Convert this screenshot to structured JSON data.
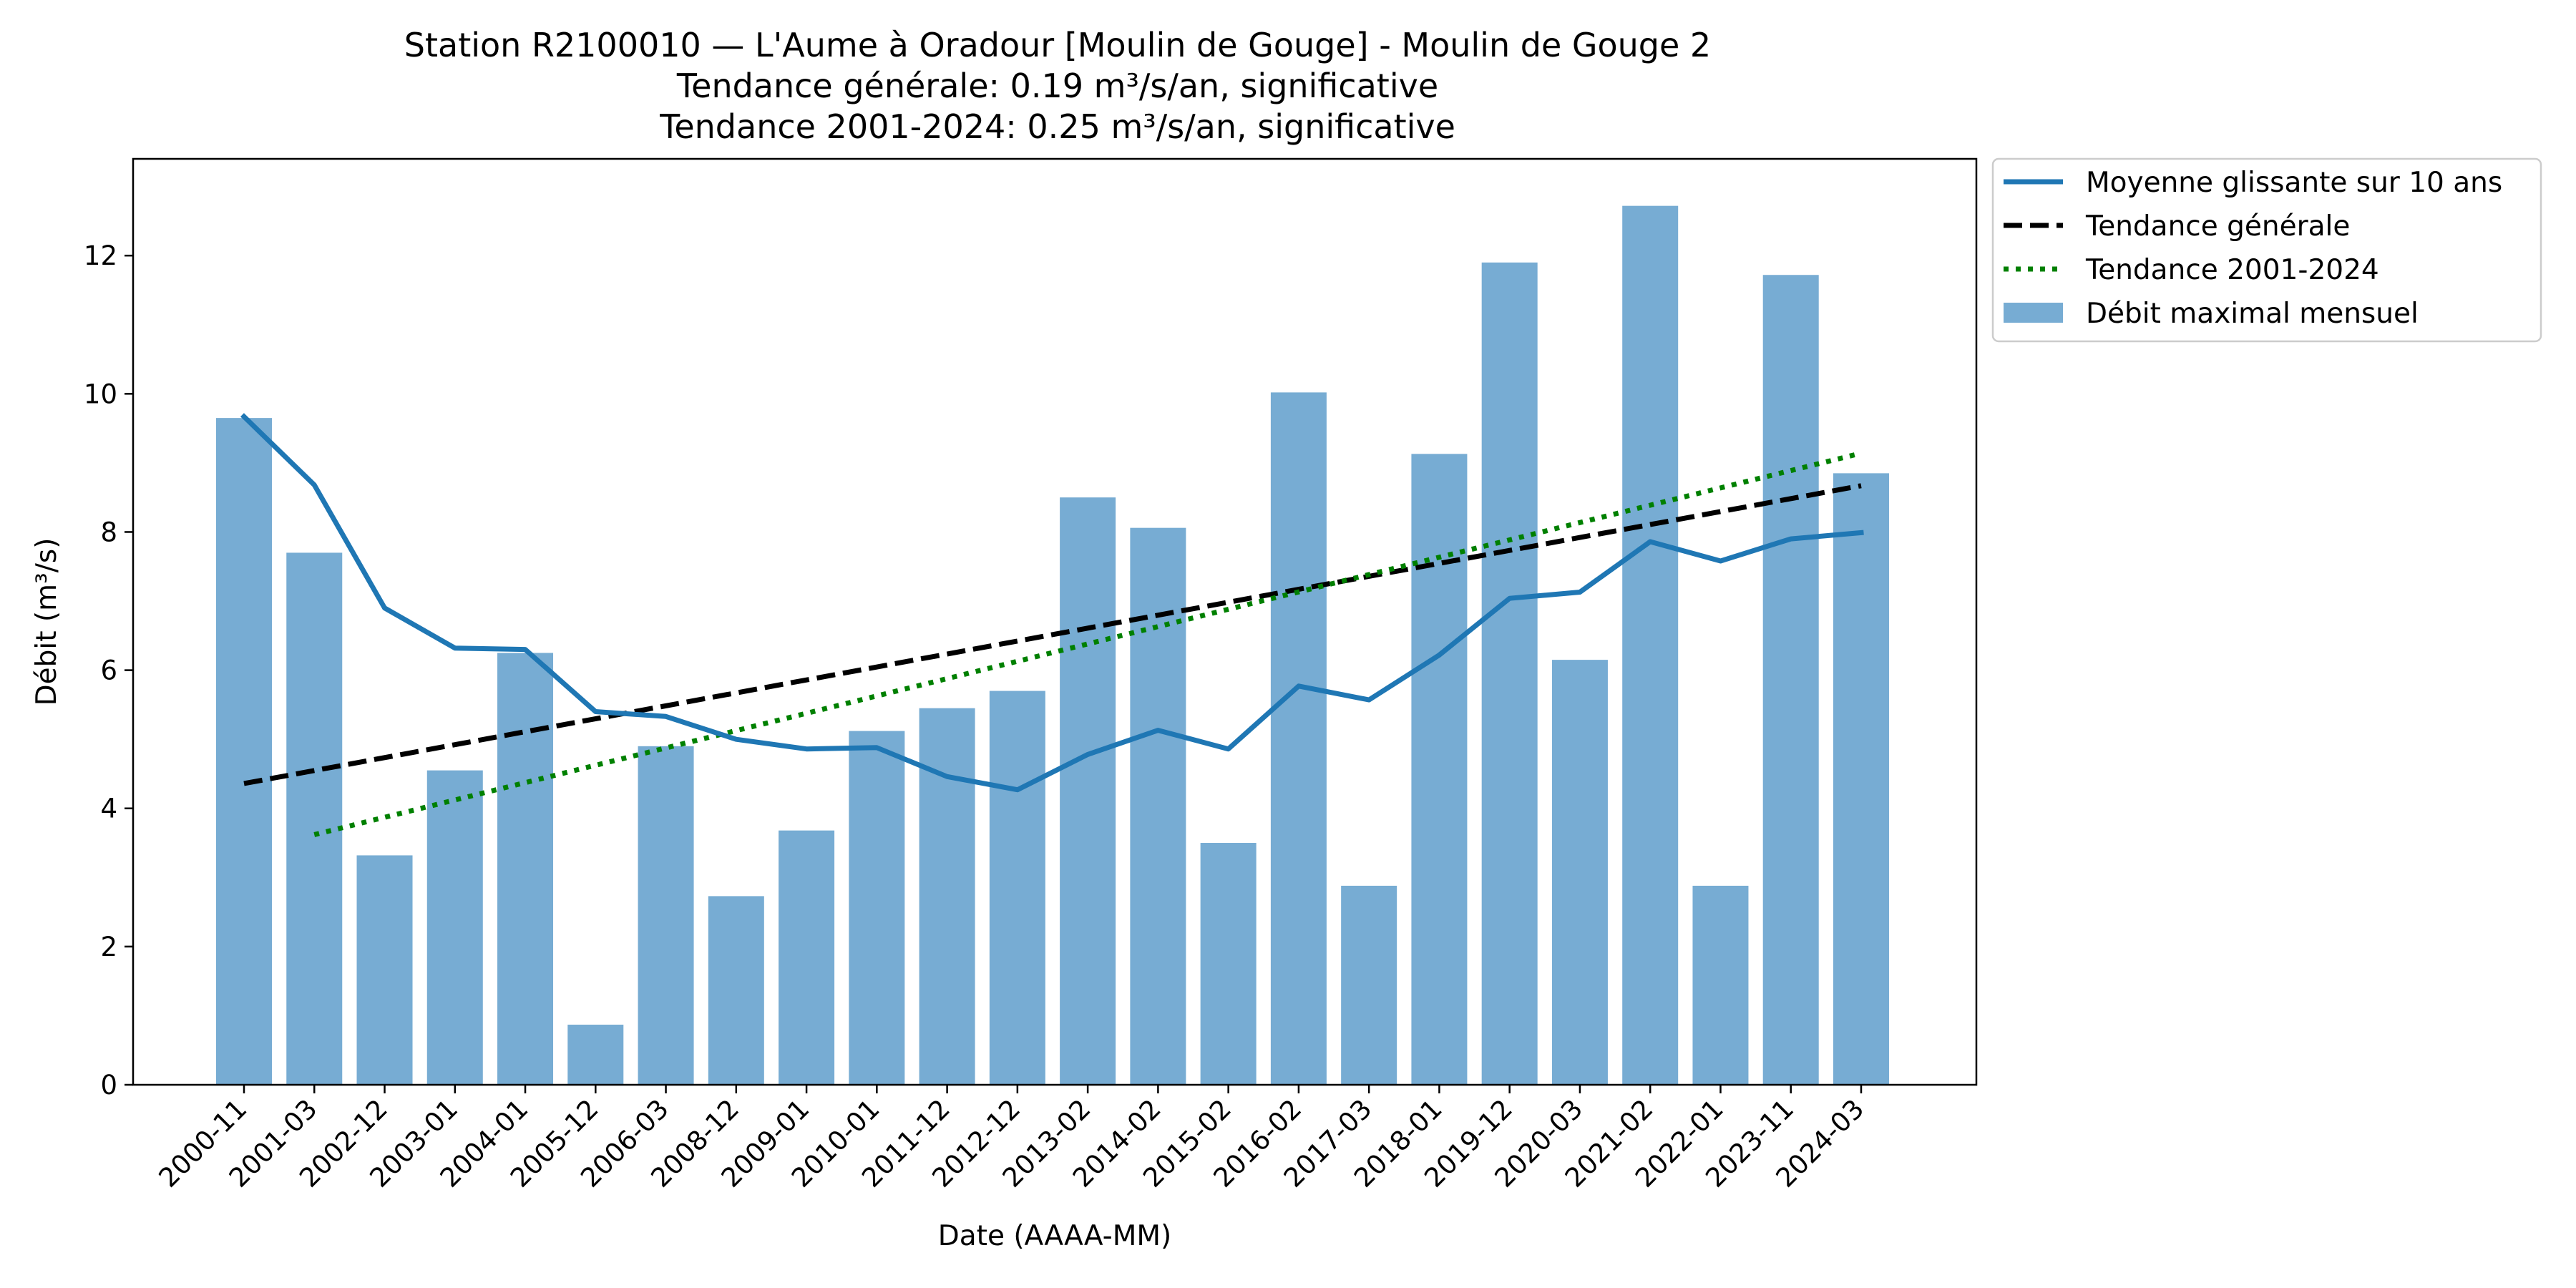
{
  "chart_data": {
    "type": "bar",
    "title_lines": [
      "Station R2100010 — L'Aume à Oradour [Moulin de Gouge] - Moulin de Gouge 2",
      "Tendance générale: 0.19 m³/s/an, significative",
      "Tendance 2001-2024: 0.25 m³/s/an, significative"
    ],
    "xlabel": "Date (AAAA-MM)",
    "ylabel": "Débit (m³/s)",
    "ylim": [
      0,
      13.4
    ],
    "yticks": [
      0,
      2,
      4,
      6,
      8,
      10,
      12
    ],
    "categories": [
      "2000-11",
      "2001-03",
      "2002-12",
      "2003-01",
      "2004-01",
      "2005-12",
      "2006-03",
      "2008-12",
      "2009-01",
      "2010-01",
      "2011-12",
      "2012-12",
      "2013-02",
      "2014-02",
      "2015-02",
      "2016-02",
      "2017-03",
      "2018-01",
      "2019-12",
      "2020-03",
      "2021-02",
      "2022-01",
      "2023-11",
      "2024-03"
    ],
    "series": [
      {
        "name": "Débit maximal mensuel",
        "kind": "bar",
        "color": "#77acd3",
        "values": [
          9.65,
          7.7,
          3.32,
          4.55,
          6.25,
          0.87,
          4.9,
          2.73,
          3.68,
          5.12,
          5.45,
          5.7,
          8.5,
          8.06,
          3.5,
          10.02,
          2.88,
          9.13,
          11.9,
          6.15,
          12.72,
          2.88,
          11.72,
          8.85
        ]
      },
      {
        "name": "Moyenne glissante sur 10 ans",
        "kind": "line",
        "color": "#1f77b4",
        "values": [
          9.67,
          8.68,
          6.9,
          6.32,
          6.3,
          5.4,
          5.33,
          5.0,
          4.86,
          4.88,
          4.46,
          4.27,
          4.78,
          5.13,
          4.86,
          5.77,
          5.57,
          6.22,
          7.04,
          7.13,
          7.86,
          7.58,
          7.9,
          7.99
        ]
      },
      {
        "name": "Tendance générale",
        "kind": "trend",
        "style": "dashed",
        "color": "#000000",
        "start_index": 0,
        "end_index": 23,
        "start_value": 4.36,
        "end_value": 8.67
      },
      {
        "name": "Tendance 2001-2024",
        "kind": "trend",
        "style": "dotted",
        "color": "#008000",
        "start_index": 1,
        "end_index": 23,
        "start_value": 3.62,
        "end_value": 9.14
      }
    ],
    "legend": {
      "position": "outside-top-right",
      "entries": [
        {
          "label": "Moyenne glissante sur 10 ans",
          "kind": "line",
          "color": "#1f77b4"
        },
        {
          "label": "Tendance générale",
          "kind": "dashed",
          "color": "#000000"
        },
        {
          "label": "Tendance 2001-2024",
          "kind": "dotted",
          "color": "#008000"
        },
        {
          "label": "Débit maximal mensuel",
          "kind": "bar",
          "color": "#77acd3"
        }
      ]
    }
  }
}
